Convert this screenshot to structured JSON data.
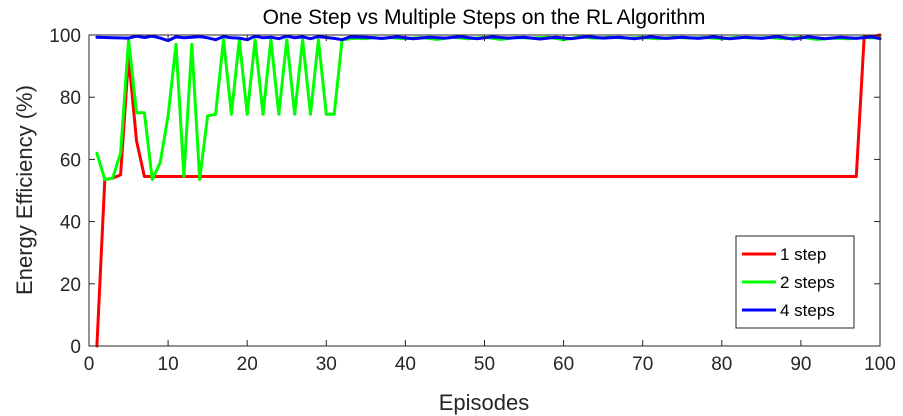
{
  "chart_data": {
    "type": "line",
    "title": "One Step vs Multiple Steps on the RL Algorithm",
    "xlabel": "Episodes",
    "ylabel": "Energy Efficiency (%)",
    "xlim": [
      0,
      100
    ],
    "ylim": [
      0,
      100
    ],
    "xticks": [
      "0",
      "10",
      "20",
      "30",
      "40",
      "50",
      "60",
      "70",
      "80",
      "90",
      "100"
    ],
    "yticks": [
      "0",
      "20",
      "40",
      "60",
      "80",
      "100"
    ],
    "grid": false,
    "legend_position": "bottom-right",
    "series": [
      {
        "name": "1 step",
        "color": "#ff0000",
        "points": [
          [
            1,
            0
          ],
          [
            2,
            53.5
          ],
          [
            3,
            54
          ],
          [
            4,
            55
          ],
          [
            5,
            93
          ],
          [
            6,
            66
          ],
          [
            7,
            54.5
          ],
          [
            8,
            54.5
          ],
          [
            9,
            54.5
          ],
          [
            10,
            54.5
          ],
          [
            20,
            54.5
          ],
          [
            30,
            54.5
          ],
          [
            40,
            54.5
          ],
          [
            50,
            54.5
          ],
          [
            60,
            54.5
          ],
          [
            70,
            54.5
          ],
          [
            80,
            54.5
          ],
          [
            90,
            54.5
          ],
          [
            97,
            54.5
          ],
          [
            98,
            99.5
          ],
          [
            99,
            99.5
          ],
          [
            100,
            100
          ]
        ]
      },
      {
        "name": "2 steps",
        "color": "#00ff00",
        "points": [
          [
            1,
            62
          ],
          [
            2,
            53.5
          ],
          [
            3,
            54
          ],
          [
            4,
            62
          ],
          [
            5,
            98.5
          ],
          [
            6,
            75
          ],
          [
            7,
            75
          ],
          [
            8,
            53.5
          ],
          [
            9,
            59
          ],
          [
            10,
            74
          ],
          [
            11,
            97
          ],
          [
            12,
            54.5
          ],
          [
            13,
            97
          ],
          [
            14,
            53.5
          ],
          [
            15,
            74
          ],
          [
            16,
            74.5
          ],
          [
            17,
            98.5
          ],
          [
            18,
            74.5
          ],
          [
            19,
            98.5
          ],
          [
            20,
            74.5
          ],
          [
            21,
            98.5
          ],
          [
            22,
            74.5
          ],
          [
            23,
            98.5
          ],
          [
            24,
            74.5
          ],
          [
            25,
            98.5
          ],
          [
            26,
            74.5
          ],
          [
            27,
            98.5
          ],
          [
            28,
            74.5
          ],
          [
            29,
            98.5
          ],
          [
            30,
            74.5
          ],
          [
            31,
            74.5
          ],
          [
            32,
            98.5
          ],
          [
            33,
            98.8
          ],
          [
            34,
            99
          ],
          [
            35,
            98.8
          ],
          [
            36,
            99.2
          ],
          [
            37,
            98.8
          ],
          [
            38,
            99.2
          ],
          [
            39,
            99
          ],
          [
            40,
            98.8
          ],
          [
            42,
            99.2
          ],
          [
            44,
            98.6
          ],
          [
            46,
            99.3
          ],
          [
            48,
            98.8
          ],
          [
            50,
            99.3
          ],
          [
            52,
            98.6
          ],
          [
            54,
            99.2
          ],
          [
            56,
            99
          ],
          [
            58,
            99.3
          ],
          [
            60,
            98.5
          ],
          [
            62,
            99.4
          ],
          [
            64,
            99
          ],
          [
            66,
            99.3
          ],
          [
            68,
            99
          ],
          [
            70,
            99.2
          ],
          [
            72,
            98.8
          ],
          [
            74,
            99.3
          ],
          [
            76,
            99
          ],
          [
            78,
            99.2
          ],
          [
            80,
            98.8
          ],
          [
            82,
            99.3
          ],
          [
            84,
            99
          ],
          [
            86,
            99.2
          ],
          [
            88,
            98.8
          ],
          [
            90,
            99.3
          ],
          [
            92,
            98.6
          ],
          [
            94,
            99
          ],
          [
            96,
            98.8
          ],
          [
            98,
            99.2
          ],
          [
            100,
            99
          ]
        ]
      },
      {
        "name": "4 steps",
        "color": "#0000ff",
        "points": [
          [
            1,
            99.3
          ],
          [
            3,
            99.1
          ],
          [
            5,
            99
          ],
          [
            6,
            99.6
          ],
          [
            7,
            99.2
          ],
          [
            8,
            99.6
          ],
          [
            9,
            99
          ],
          [
            10,
            98.2
          ],
          [
            11,
            99.4
          ],
          [
            12,
            99.1
          ],
          [
            13,
            99.3
          ],
          [
            14,
            99.5
          ],
          [
            15,
            99.1
          ],
          [
            16,
            98.5
          ],
          [
            17,
            99.5
          ],
          [
            18,
            99.1
          ],
          [
            19,
            99
          ],
          [
            20,
            98.5
          ],
          [
            21,
            99.6
          ],
          [
            22,
            99.1
          ],
          [
            23,
            99.3
          ],
          [
            24,
            98.8
          ],
          [
            25,
            99.6
          ],
          [
            26,
            99.1
          ],
          [
            27,
            99.4
          ],
          [
            28,
            98.8
          ],
          [
            29,
            99.5
          ],
          [
            30,
            99.2
          ],
          [
            31,
            98.9
          ],
          [
            32,
            98.5
          ],
          [
            33,
            99.4
          ],
          [
            35,
            99.3
          ],
          [
            37,
            98.9
          ],
          [
            39,
            99.4
          ],
          [
            41,
            98.8
          ],
          [
            43,
            99.3
          ],
          [
            45,
            99
          ],
          [
            47,
            99.5
          ],
          [
            49,
            98.8
          ],
          [
            51,
            99.4
          ],
          [
            53,
            99
          ],
          [
            55,
            99.3
          ],
          [
            57,
            98.7
          ],
          [
            59,
            99.3
          ],
          [
            61,
            98.8
          ],
          [
            63,
            99.5
          ],
          [
            65,
            99
          ],
          [
            67,
            99.3
          ],
          [
            69,
            98.8
          ],
          [
            71,
            99.4
          ],
          [
            73,
            98.9
          ],
          [
            75,
            99.3
          ],
          [
            77,
            98.9
          ],
          [
            79,
            99.4
          ],
          [
            81,
            98.8
          ],
          [
            83,
            99.3
          ],
          [
            85,
            98.9
          ],
          [
            87,
            99.5
          ],
          [
            89,
            98.7
          ],
          [
            91,
            99.4
          ],
          [
            93,
            98.8
          ],
          [
            95,
            99.3
          ],
          [
            97,
            98.9
          ],
          [
            99,
            99.4
          ],
          [
            100,
            98.8
          ]
        ]
      }
    ]
  }
}
